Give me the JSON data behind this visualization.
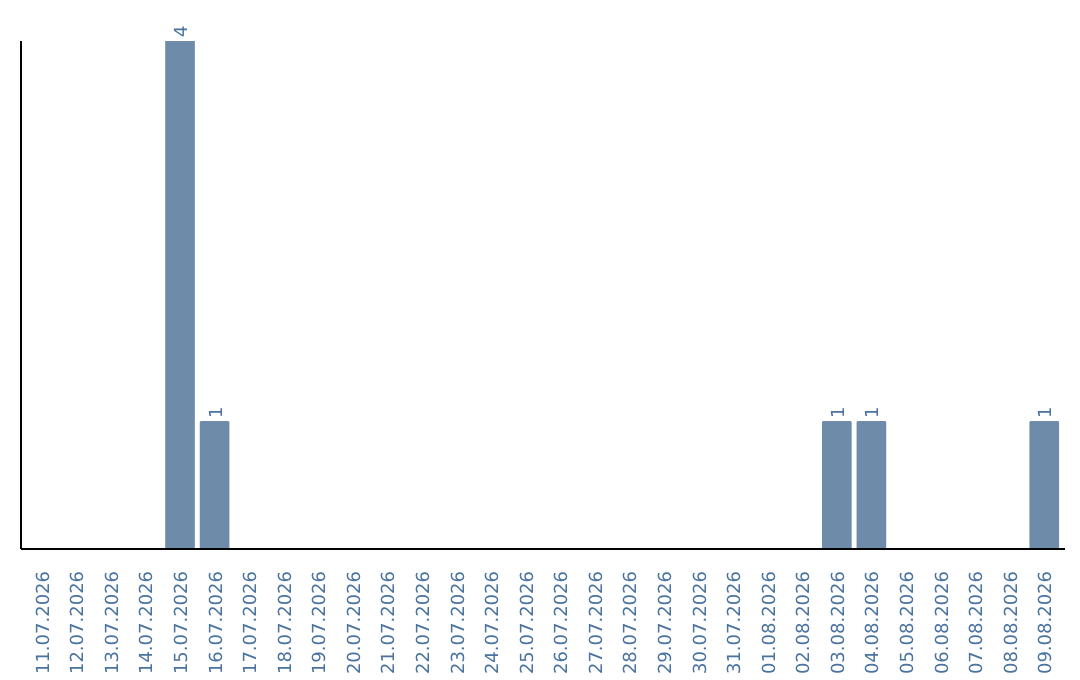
{
  "chart_data": {
    "type": "bar",
    "categories": [
      "11.07.2026",
      "12.07.2026",
      "13.07.2026",
      "14.07.2026",
      "15.07.2026",
      "16.07.2026",
      "17.07.2026",
      "18.07.2026",
      "19.07.2026",
      "20.07.2026",
      "21.07.2026",
      "22.07.2026",
      "23.07.2026",
      "24.07.2026",
      "25.07.2026",
      "26.07.2026",
      "27.07.2026",
      "28.07.2026",
      "29.07.2026",
      "30.07.2026",
      "31.07.2026",
      "01.08.2026",
      "02.08.2026",
      "03.08.2026",
      "04.08.2026",
      "05.08.2026",
      "06.08.2026",
      "07.08.2026",
      "08.08.2026",
      "09.08.2026"
    ],
    "values": [
      0,
      0,
      0,
      0,
      4,
      1,
      0,
      0,
      0,
      0,
      0,
      0,
      0,
      0,
      0,
      0,
      0,
      0,
      0,
      0,
      0,
      0,
      0,
      1,
      1,
      0,
      0,
      0,
      0,
      1
    ],
    "value_labels": [
      null,
      null,
      null,
      null,
      "4",
      "1",
      null,
      null,
      null,
      null,
      null,
      null,
      null,
      null,
      null,
      null,
      null,
      null,
      null,
      null,
      null,
      null,
      null,
      "1",
      "1",
      null,
      null,
      null,
      null,
      "1"
    ],
    "color": "#6e8caa",
    "ylim": [
      0,
      4
    ],
    "tick_labels": "x",
    "grid": false
  }
}
